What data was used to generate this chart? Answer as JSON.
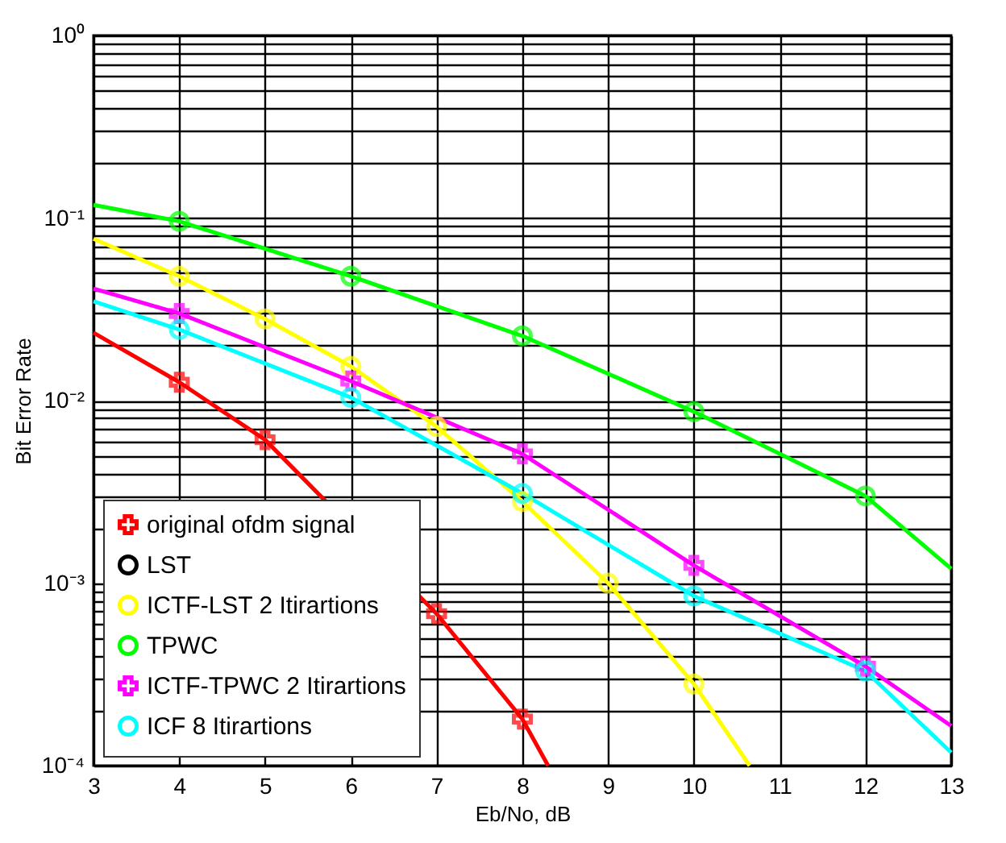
{
  "chart_data": {
    "type": "line",
    "xlabel": "Eb/No, dB",
    "ylabel": "Bit Error Rate",
    "log": "y",
    "grid": true,
    "legend": "bottom left",
    "xlim": [
      3,
      13
    ],
    "ylim": [
      0.0001,
      1
    ],
    "xticks": [
      3,
      4,
      5,
      6,
      7,
      8,
      9,
      10,
      11,
      12,
      13
    ],
    "yticks": [
      {
        "value": 0.0001,
        "label": "10⁻⁴"
      },
      {
        "value": 0.0002,
        "label": null
      },
      {
        "value": 0.0003,
        "label": null
      },
      {
        "value": 0.0004,
        "label": null
      },
      {
        "value": 0.0005,
        "label": null
      },
      {
        "value": 0.0006,
        "label": null
      },
      {
        "value": 0.0007,
        "label": null
      },
      {
        "value": 0.0008,
        "label": null
      },
      {
        "value": 0.0009,
        "label": null
      },
      {
        "value": 0.001,
        "label": "10⁻³"
      },
      {
        "value": 0.002,
        "label": null
      },
      {
        "value": 0.003,
        "label": null
      },
      {
        "value": 0.004,
        "label": null
      },
      {
        "value": 0.005,
        "label": null
      },
      {
        "value": 0.006,
        "label": null
      },
      {
        "value": 0.007,
        "label": null
      },
      {
        "value": 0.008,
        "label": null
      },
      {
        "value": 0.009,
        "label": null
      },
      {
        "value": 0.01,
        "label": "10⁻²"
      },
      {
        "value": 0.02,
        "label": null
      },
      {
        "value": 0.03,
        "label": null
      },
      {
        "value": 0.04,
        "label": null
      },
      {
        "value": 0.05,
        "label": null
      },
      {
        "value": 0.06,
        "label": null
      },
      {
        "value": 0.07,
        "label": null
      },
      {
        "value": 0.08,
        "label": null
      },
      {
        "value": 0.09,
        "label": null
      },
      {
        "value": 0.1,
        "label": "10⁻¹"
      },
      {
        "value": 0.2,
        "label": null
      },
      {
        "value": 0.3,
        "label": null
      },
      {
        "value": 0.4,
        "label": null
      },
      {
        "value": 0.5,
        "label": null
      },
      {
        "value": 0.6,
        "label": null
      },
      {
        "value": 0.7,
        "label": null
      },
      {
        "value": 0.8,
        "label": null
      },
      {
        "value": 0.9,
        "label": null
      },
      {
        "value": 1,
        "label": "10⁰"
      }
    ],
    "series": [
      {
        "name": "original ofdm signal",
        "color": "#ff0000",
        "marker": "cross",
        "x": [
          3,
          4,
          5,
          7,
          8,
          8.3
        ],
        "values": [
          0.0235,
          0.0126,
          0.0061,
          0.00068,
          0.00018,
          0.0001
        ]
      },
      {
        "name": "LST",
        "color": "#000000",
        "marker": "circle"
      },
      {
        "name": "ICTF-LST 2 Itirartions",
        "color": "#ffff00",
        "marker": "circle",
        "x": [
          3,
          4,
          5,
          6,
          7,
          8,
          9,
          10,
          10.65
        ],
        "values": [
          0.077,
          0.048,
          0.028,
          0.0154,
          0.0072,
          0.0028,
          0.001,
          0.00028,
          0.0001
        ]
      },
      {
        "name": "TPWC",
        "color": "#00ff00",
        "marker": "circle",
        "x": [
          3,
          4,
          6,
          8,
          10,
          12,
          13
        ],
        "values": [
          0.118,
          0.096,
          0.048,
          0.0226,
          0.0087,
          0.003,
          0.0012
        ]
      },
      {
        "name": "ICTF-TPWC 2 Itirartions",
        "color": "#ff00ff",
        "marker": "cross",
        "x": [
          3,
          4,
          6,
          8,
          10,
          12,
          13
        ],
        "values": [
          0.041,
          0.03,
          0.0128,
          0.0051,
          0.00125,
          0.00035,
          0.000165
        ]
      },
      {
        "name": "ICF 8 Itirartions",
        "color": "#00ffff",
        "marker": "circle",
        "x": [
          3,
          4,
          6,
          8,
          10,
          12,
          13
        ],
        "values": [
          0.035,
          0.0245,
          0.0104,
          0.0031,
          0.00085,
          0.00033,
          0.000118
        ]
      }
    ]
  }
}
